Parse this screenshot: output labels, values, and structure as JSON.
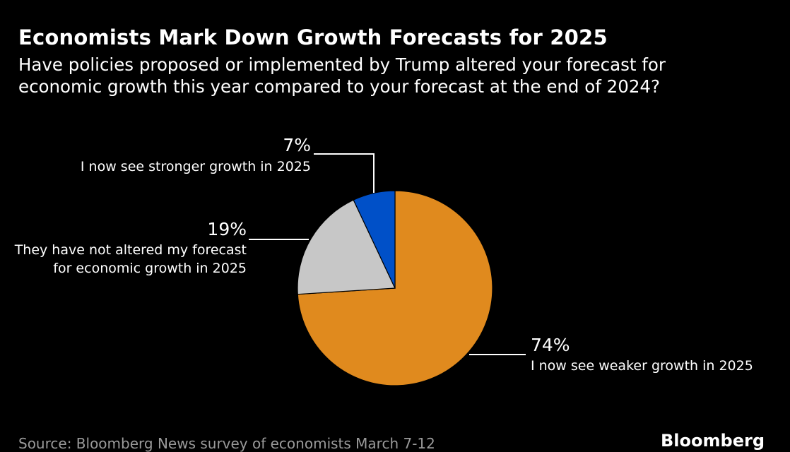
{
  "title": "Economists Mark Down Growth Forecasts for 2025",
  "subtitle_lines": [
    "Have policies proposed or implemented by Trump altered your forecast for",
    "economic growth this year compared to your forecast at the end of 2024?"
  ],
  "source": "Source: Bloomberg News survey of economists March 7-12",
  "brand": "Bloomberg",
  "chart_data": {
    "type": "pie",
    "legend": "none",
    "slices": [
      {
        "value": 74,
        "value_label": "74%",
        "label_lines": [
          "I now see weaker growth in 2025"
        ],
        "color": "#E08A1E"
      },
      {
        "value": 19,
        "value_label": "19%",
        "label_lines": [
          "They have not altered my forecast",
          "for economic growth in 2025"
        ],
        "color": "#C7C7C7"
      },
      {
        "value": 7,
        "value_label": "7%",
        "label_lines": [
          "I now see stronger growth in 2025"
        ],
        "color": "#0050C8"
      }
    ]
  }
}
